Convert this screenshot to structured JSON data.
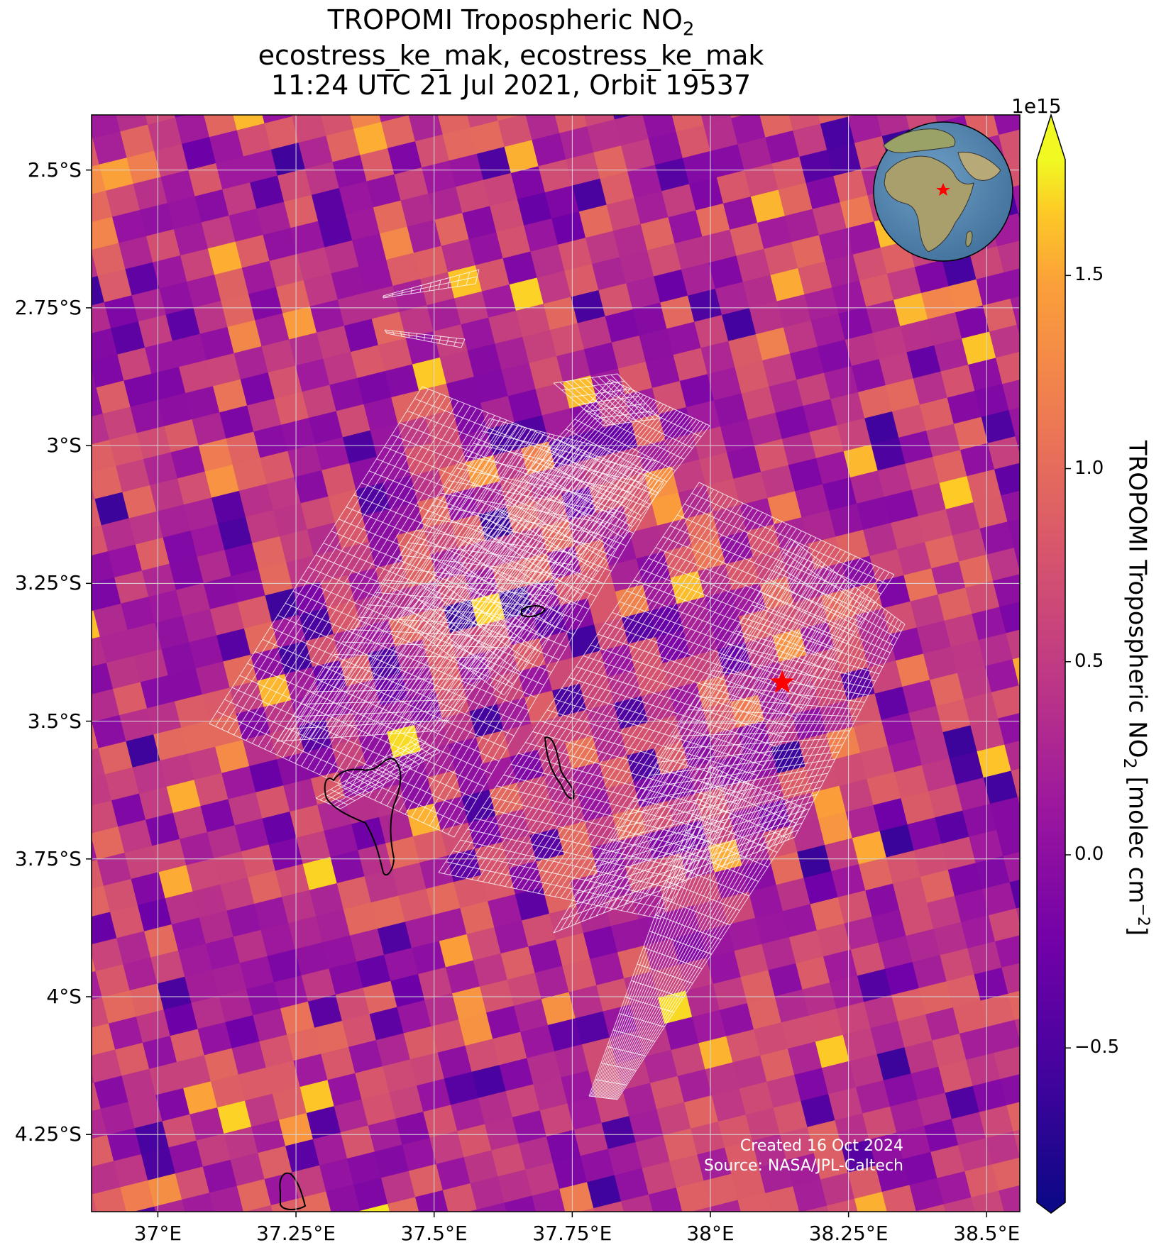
{
  "title": {
    "line1_prefix": "TROPOMI Tropospheric NO",
    "line1_sub": "2",
    "line2": "ecostress_ke_mak, ecostress_ke_mak",
    "line3": "11:24 UTC 21 Jul 2021, Orbit 19537"
  },
  "axes": {
    "x_ticks": [
      {
        "value": 37.0,
        "label": "37°E"
      },
      {
        "value": 37.25,
        "label": "37.25°E"
      },
      {
        "value": 37.5,
        "label": "37.5°E"
      },
      {
        "value": 37.75,
        "label": "37.75°E"
      },
      {
        "value": 38.0,
        "label": "38°E"
      },
      {
        "value": 38.25,
        "label": "38.25°E"
      },
      {
        "value": 38.5,
        "label": "38.5°E"
      }
    ],
    "y_ticks": [
      {
        "value": -2.5,
        "label": "2.5°S"
      },
      {
        "value": -2.75,
        "label": "2.75°S"
      },
      {
        "value": -3.0,
        "label": "3°S"
      },
      {
        "value": -3.25,
        "label": "3.25°S"
      },
      {
        "value": -3.5,
        "label": "3.5°S"
      },
      {
        "value": -3.75,
        "label": "3.75°S"
      },
      {
        "value": -4.0,
        "label": "4°S"
      },
      {
        "value": -4.25,
        "label": "4.25°S"
      }
    ],
    "lon_range": [
      36.88,
      38.56
    ],
    "lat_range": [
      -4.39,
      -2.4
    ],
    "grid": true
  },
  "colorbar": {
    "offset_label": "1e15",
    "title_prefix": "TROPOMI Tropospheric NO",
    "title_sub": "2",
    "title_unit_prefix": " [molec cm",
    "title_unit_sup": "−2",
    "title_unit_suffix": "]",
    "range": [
      -0.9,
      1.8
    ],
    "colormap": "plasma",
    "extend": "both",
    "ticks": [
      {
        "value": -0.5,
        "label": "−0.5"
      },
      {
        "value": 0.0,
        "label": "0.0"
      },
      {
        "value": 0.5,
        "label": "0.5"
      },
      {
        "value": 1.0,
        "label": "1.0"
      },
      {
        "value": 1.5,
        "label": "1.5"
      }
    ]
  },
  "marker": {
    "type": "star",
    "color": "#ff0000",
    "lon": 38.13,
    "lat": -3.43
  },
  "inset": {
    "type": "globe",
    "marker_color": "#ff0000",
    "region": "Africa"
  },
  "credit": {
    "line1": "Created 16 Oct 2024",
    "line2": "Source: NASA/JPL-Caltech"
  },
  "colors": {
    "grid": "#d8d8d8",
    "footprint_outline": "#ffffff",
    "contour": "#000000"
  }
}
